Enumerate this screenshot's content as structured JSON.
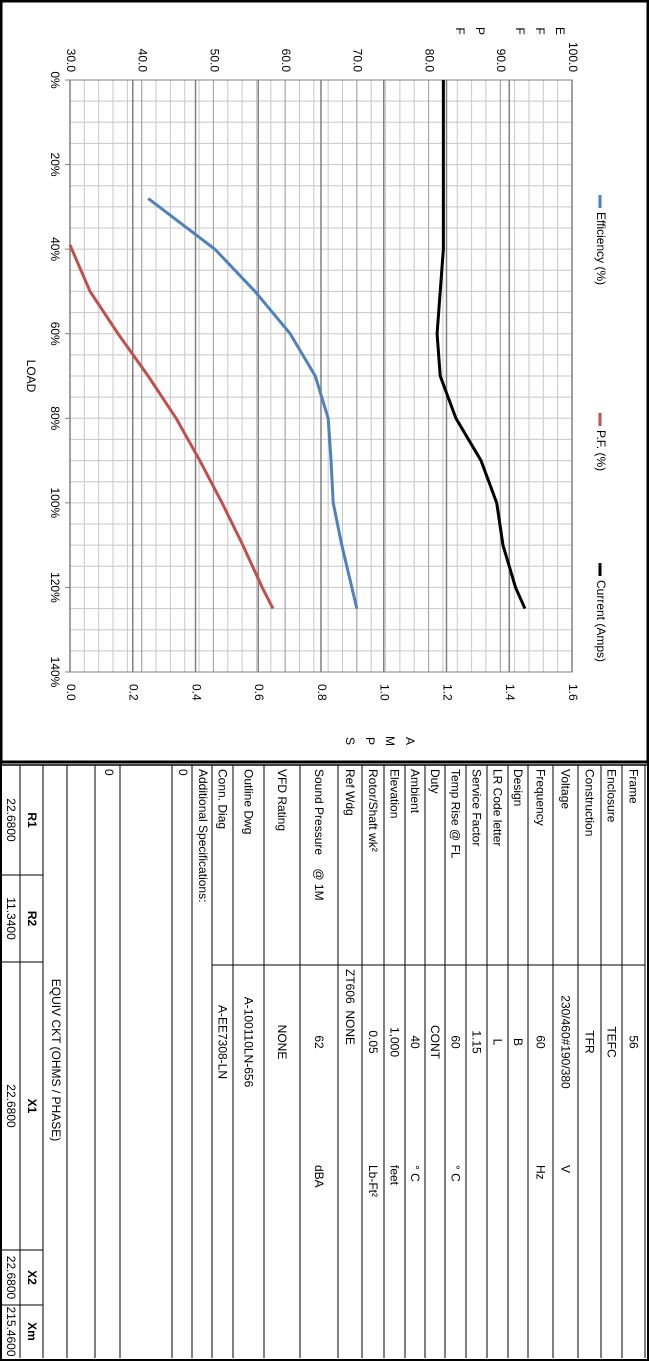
{
  "chart_data": {
    "type": "line",
    "ylabel": "EFF PF",
    "y2label": "AMPS",
    "xlabel": "LOAD",
    "xlim": [
      0,
      140
    ],
    "xticks": [
      {
        "value": 0,
        "label": "0%"
      },
      {
        "value": 20,
        "label": "20%"
      },
      {
        "value": 40,
        "label": "40%"
      },
      {
        "value": 60,
        "label": "60%"
      },
      {
        "value": 80,
        "label": "80%"
      },
      {
        "value": 100,
        "label": "100%"
      },
      {
        "value": 120,
        "label": "120%"
      },
      {
        "value": 140,
        "label": "140%"
      }
    ],
    "ylim": [
      30,
      100
    ],
    "yticks": [
      {
        "value": 30,
        "label": "30.0"
      },
      {
        "value": 40,
        "label": "40.0"
      },
      {
        "value": 50,
        "label": "50.0"
      },
      {
        "value": 60,
        "label": "60.0"
      },
      {
        "value": 70,
        "label": "70.0"
      },
      {
        "value": 80,
        "label": "80.0"
      },
      {
        "value": 90,
        "label": "90.0"
      },
      {
        "value": 100,
        "label": "100.0"
      }
    ],
    "y2lim": [
      0,
      1.6
    ],
    "y2ticks": [
      {
        "value": 0,
        "label": "0.0"
      },
      {
        "value": 0.2,
        "label": "0.2"
      },
      {
        "value": 0.4,
        "label": "0.4"
      },
      {
        "value": 0.6,
        "label": "0.6"
      },
      {
        "value": 0.8,
        "label": "0.8"
      },
      {
        "value": 1,
        "label": "1.0"
      },
      {
        "value": 1.2,
        "label": "1.2"
      },
      {
        "value": 1.4,
        "label": "1.4"
      },
      {
        "value": 1.6,
        "label": "1.6"
      }
    ],
    "grid": true,
    "legend": "top",
    "series": [
      {
        "name": "Efficiency (%)",
        "color": "#4f81bd",
        "x": [
          28,
          40,
          50,
          60,
          70,
          80,
          90,
          100,
          110,
          125
        ],
        "values": [
          40.9,
          50.2,
          55.8,
          60.7,
          64.2,
          66.0,
          66.4,
          66.7,
          67.9,
          70.0
        ]
      },
      {
        "name": "P.F. (%)",
        "color": "#c0504d",
        "x": [
          39,
          50,
          60,
          70,
          80,
          90,
          100,
          110,
          120,
          125
        ],
        "values": [
          30.0,
          32.8,
          36.7,
          40.9,
          44.8,
          48.1,
          51.2,
          54.1,
          56.8,
          58.3
        ]
      },
      {
        "name": "Current (Amps)",
        "color": "#000000",
        "axis": "y2",
        "x": [
          0,
          20,
          40,
          60,
          70,
          80,
          90,
          100,
          110,
          120,
          125
        ],
        "values": [
          1.19,
          1.19,
          1.19,
          1.17,
          1.18,
          1.23,
          1.31,
          1.36,
          1.38,
          1.42,
          1.45
        ]
      }
    ]
  },
  "specs": {
    "rows": [
      {
        "label": "Frame",
        "value": "56"
      },
      {
        "label": "Enclosure",
        "value": "TEFC"
      },
      {
        "label": "Construction",
        "value": "TFR"
      },
      {
        "label": "Voltage",
        "value": "230/460#190/380",
        "unit": "V"
      },
      {
        "label": "Frequency",
        "value": "60",
        "unit": "Hz"
      },
      {
        "label": "Design",
        "value": "B"
      },
      {
        "label": "LR Code letter",
        "value": "L"
      },
      {
        "label": "Service Factor",
        "value": "1.15"
      },
      {
        "label": "Temp Rise @ FL",
        "value": "60",
        "unit": "° C"
      },
      {
        "label": "Duty",
        "value": "CONT"
      },
      {
        "label": "Ambient",
        "value": "40",
        "unit": "° C"
      },
      {
        "label": "Elevation",
        "value": "1,000",
        "unit": "feet"
      },
      {
        "label": "Rotor/Shaft wk²",
        "value": "0.05",
        "unit": "Lb-Ft²"
      },
      {
        "label": "Ref Wdg",
        "value": "ZT606  NONE"
      },
      {
        "label": "Sound Pressure    @ 1M",
        "value": "62",
        "unit": "dBA"
      },
      {
        "label": "VFD Rating",
        "value": "NONE"
      },
      {
        "label": "Outline Dwg",
        "value": "A-100110LN-656"
      },
      {
        "label": "Conn. Diag",
        "value": "A-EE7308-LN"
      }
    ]
  },
  "additional": {
    "label": "Additional Specifications:",
    "lines": [
      "0",
      "0"
    ]
  },
  "equiv": {
    "title": "EQUIV CKT (OHMS / PHASE)",
    "headers": [
      "R1",
      "R2",
      "X1",
      "X2",
      "Xm"
    ],
    "values": [
      "22.6800",
      "11.3400",
      "22.6800",
      "22.6800",
      "215.4600"
    ]
  }
}
